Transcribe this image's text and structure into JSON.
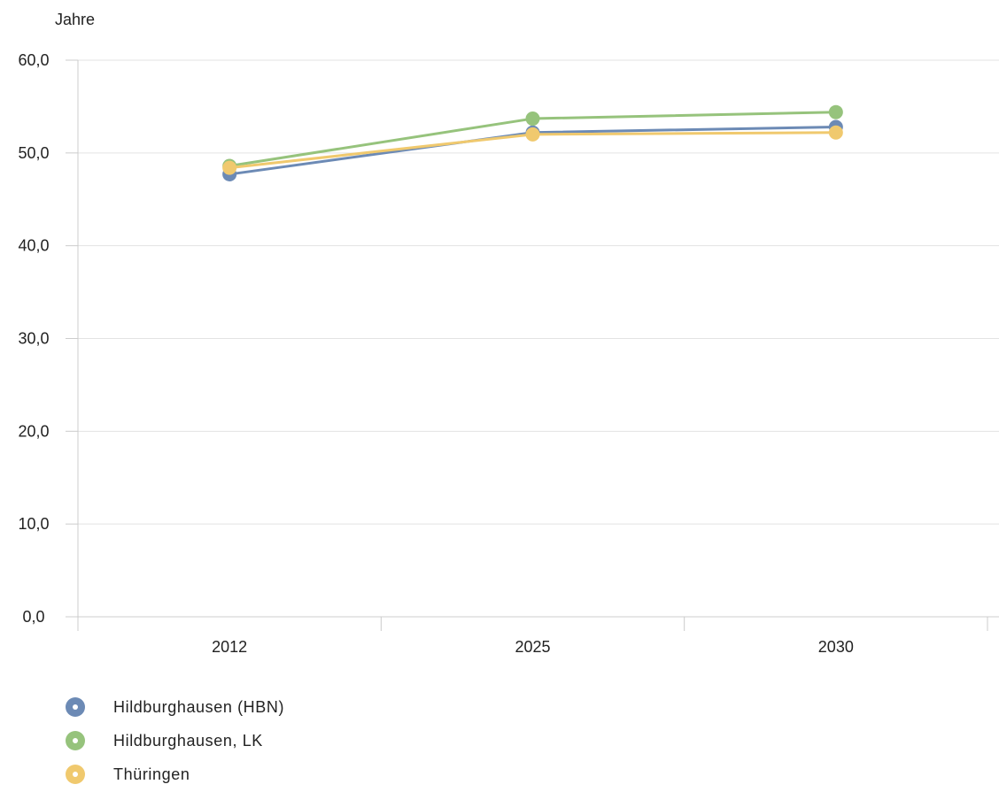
{
  "chart_data": {
    "type": "line",
    "title": "",
    "xlabel": "",
    "ylabel": "Jahre",
    "categories": [
      "2012",
      "2025",
      "2030"
    ],
    "ylim": [
      0,
      60
    ],
    "yticks": [
      "0,0",
      "10,0",
      "20,0",
      "30,0",
      "40,0",
      "50,0",
      "60,0"
    ],
    "grid": true,
    "legend_position": "bottom-left",
    "series": [
      {
        "name": "Hildburghausen (HBN)",
        "color": "#6c8ab5",
        "values": [
          47.7,
          52.2,
          52.8
        ]
      },
      {
        "name": "Hildburghausen, LK",
        "color": "#96c37c",
        "values": [
          48.6,
          53.7,
          54.4
        ]
      },
      {
        "name": "Thüringen",
        "color": "#f0c96e",
        "values": [
          48.4,
          52.0,
          52.2
        ]
      }
    ]
  }
}
